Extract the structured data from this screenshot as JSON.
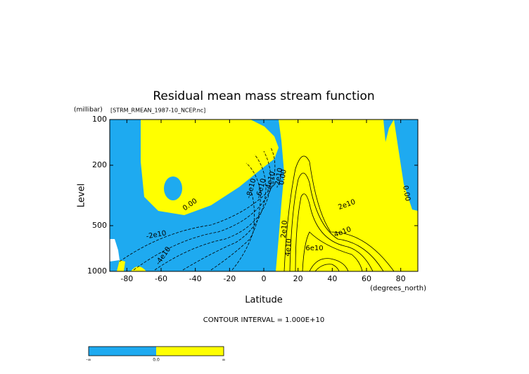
{
  "chart_data": {
    "type": "contour",
    "title": "Residual mean mass stream function",
    "subtitle": "[STRM_RMEAN_1987-10_NCEP.nc]",
    "ylabel": "Level",
    "yunit": "(millibar)",
    "xlabel": "Latitude",
    "xunit": "(degrees_north)",
    "xlim": [
      -90,
      90
    ],
    "xticks": [
      -80,
      -60,
      -40,
      -20,
      0,
      20,
      40,
      60,
      80
    ],
    "ylim": [
      1000,
      100
    ],
    "yticks": [
      100,
      200,
      500,
      1000
    ],
    "ylog": true,
    "contour_labels": [
      "0.00",
      "-2e10",
      "-4e10",
      "-8e10",
      "-6e10",
      "-4e10",
      "-2e10",
      "0.00",
      "2e10",
      "4e10",
      "2e10",
      "4e10",
      "6e10",
      "0.00"
    ],
    "footnote": "CONTOUR INTERVAL = 1.000E+10",
    "colors": [
      "#1eaaf0",
      "#ffff00"
    ],
    "colorbar_labels": [
      "-∞",
      "0.0",
      "∞"
    ]
  }
}
